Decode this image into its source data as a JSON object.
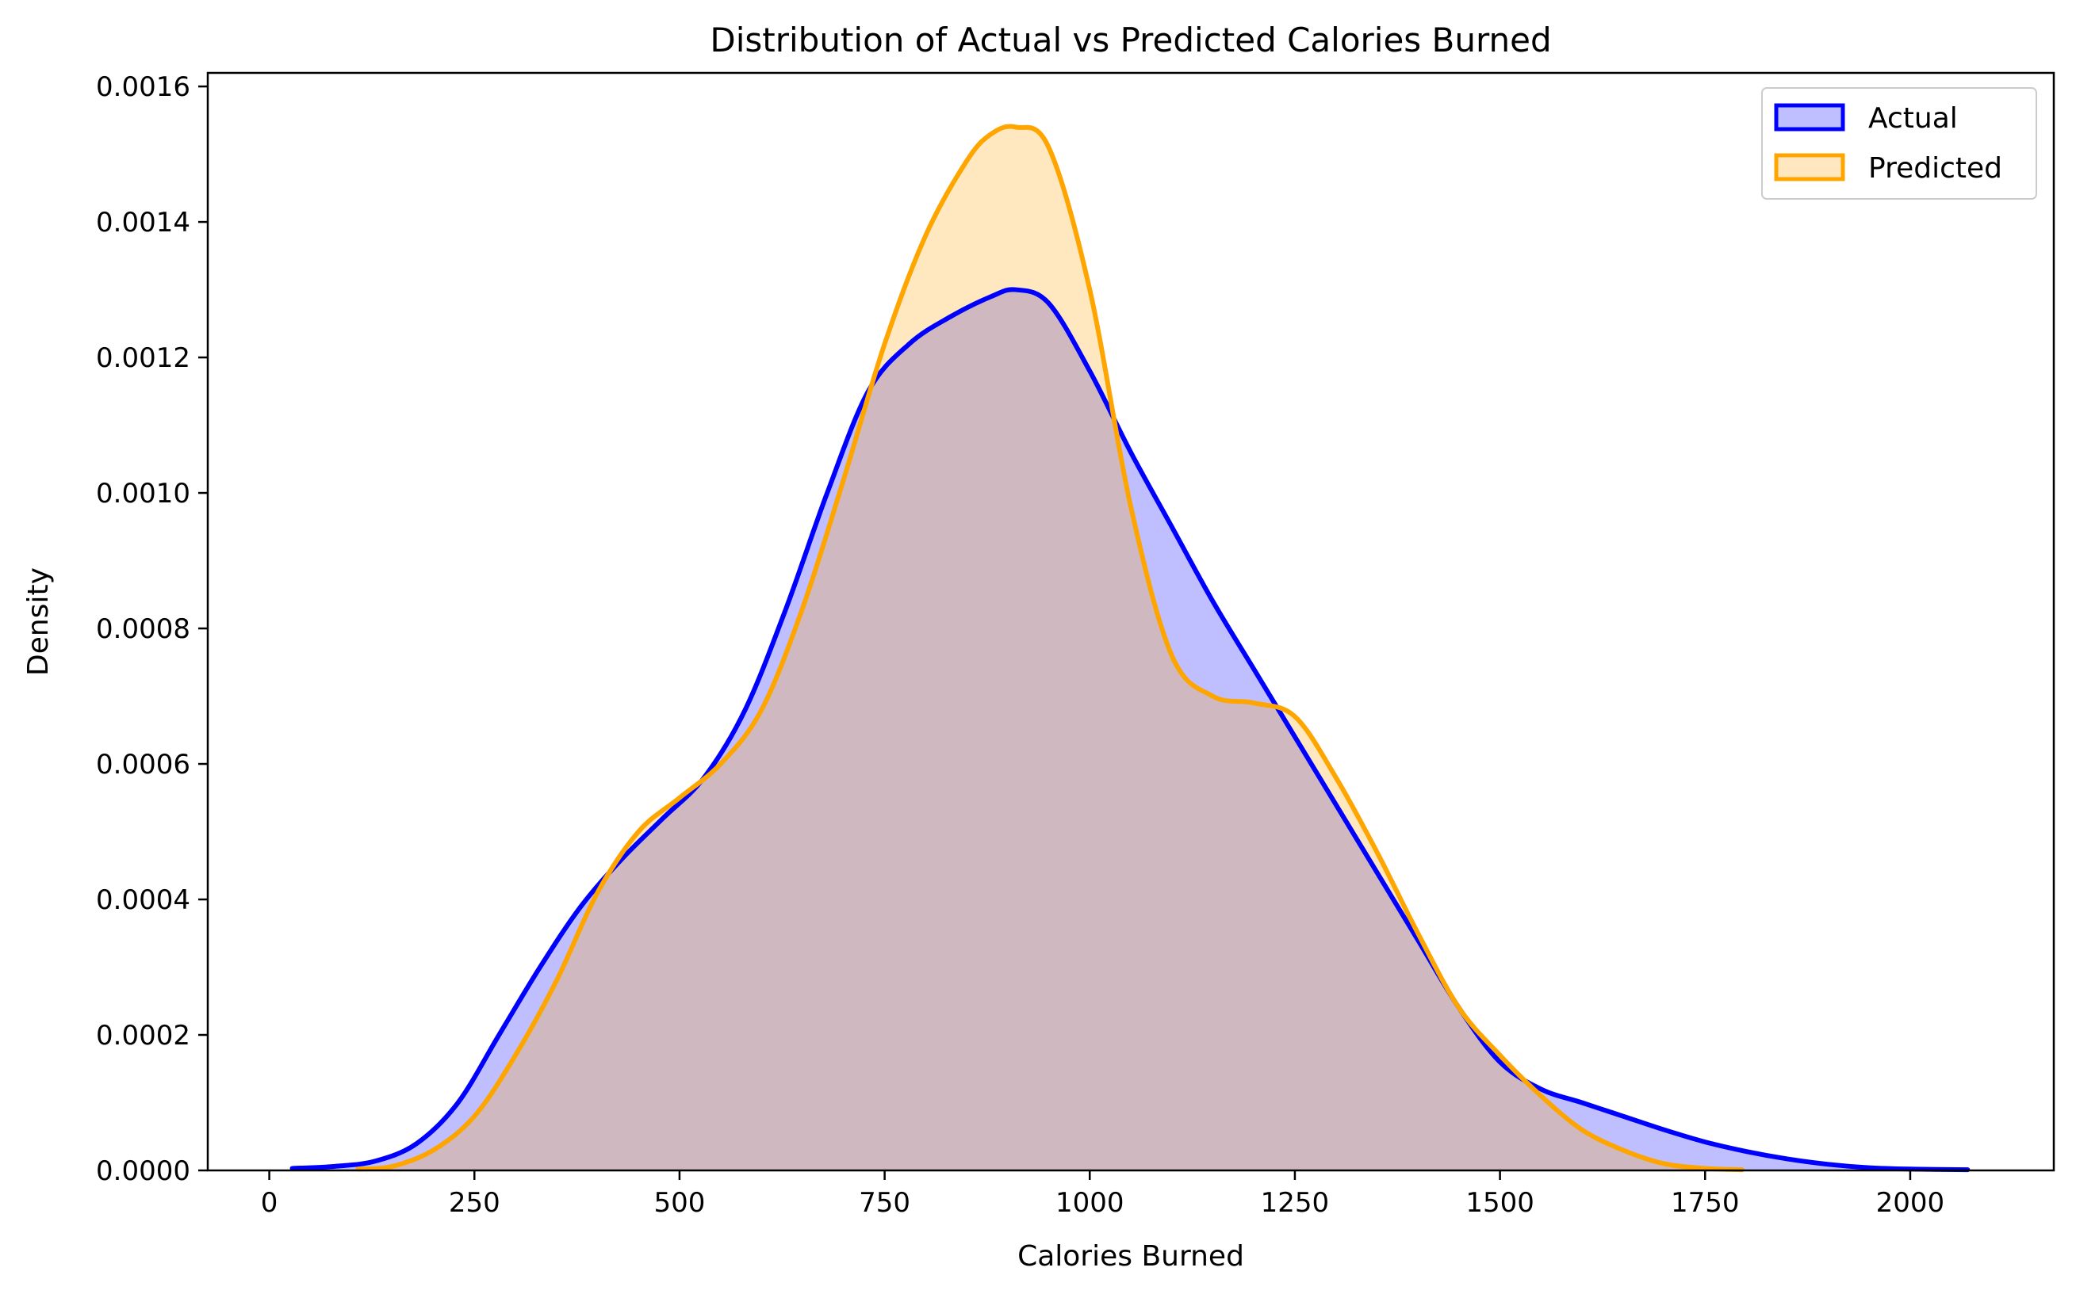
{
  "chart_data": {
    "type": "area",
    "title": "Distribution of Actual vs Predicted Calories Burned",
    "xlabel": "Calories Burned",
    "ylabel": "Density",
    "xlim": [
      -75,
      2175
    ],
    "ylim": [
      0,
      0.00162
    ],
    "x_ticks": [
      0,
      250,
      500,
      750,
      1000,
      1250,
      1500,
      1750,
      2000
    ],
    "x_tick_labels": [
      "0",
      "250",
      "500",
      "750",
      "1000",
      "1250",
      "1500",
      "1750",
      "2000"
    ],
    "y_ticks": [
      0,
      0.0002,
      0.0004,
      0.0006,
      0.0008,
      0.001,
      0.0012,
      0.0014,
      0.0016
    ],
    "y_tick_labels": [
      "0.0000",
      "0.0002",
      "0.0004",
      "0.0006",
      "0.0008",
      "0.0010",
      "0.0012",
      "0.0014",
      "0.0016"
    ],
    "grid": false,
    "legend_position": "top-right",
    "series": [
      {
        "name": "Actual",
        "color": "#0000ff",
        "fill_color": "#0000ff",
        "fill_alpha": 0.25,
        "x": [
          28,
          80,
          130,
          180,
          230,
          280,
          330,
          380,
          430,
          480,
          530,
          580,
          630,
          680,
          730,
          780,
          830,
          880,
          910,
          950,
          1000,
          1050,
          1100,
          1150,
          1200,
          1250,
          1300,
          1350,
          1400,
          1450,
          1500,
          1550,
          1600,
          1650,
          1700,
          1750,
          1800,
          1850,
          1900,
          1950,
          2000,
          2070
        ],
        "y": [
          3e-06,
          6e-06,
          1.4e-05,
          4e-05,
          0.0001,
          0.0002,
          0.0003,
          0.00039,
          0.00046,
          0.00052,
          0.00058,
          0.00068,
          0.00083,
          0.001,
          0.00115,
          0.00122,
          0.00126,
          0.00129,
          0.0013,
          0.00128,
          0.00118,
          0.00106,
          0.00095,
          0.00084,
          0.00074,
          0.00064,
          0.00054,
          0.00044,
          0.00034,
          0.00024,
          0.00016,
          0.00012,
          0.0001,
          8e-05,
          6e-05,
          4.2e-05,
          2.8e-05,
          1.7e-05,
          9e-06,
          4e-06,
          2e-06,
          1e-06
        ]
      },
      {
        "name": "Predicted",
        "color": "#ffa500",
        "fill_color": "#ffa500",
        "fill_alpha": 0.25,
        "x": [
          108,
          150,
          200,
          250,
          300,
          350,
          400,
          450,
          500,
          550,
          600,
          650,
          700,
          750,
          800,
          850,
          880,
          910,
          950,
          1000,
          1050,
          1100,
          1150,
          1200,
          1250,
          1300,
          1350,
          1400,
          1450,
          1500,
          1550,
          1600,
          1650,
          1700,
          1750,
          1795
        ],
        "y": [
          2e-06,
          6e-06,
          3e-05,
          8e-05,
          0.00017,
          0.00028,
          0.00041,
          0.0005,
          0.00055,
          0.0006,
          0.00068,
          0.00083,
          0.00102,
          0.00122,
          0.00138,
          0.00149,
          0.00153,
          0.00154,
          0.00151,
          0.0013,
          0.00098,
          0.00076,
          0.0007,
          0.00069,
          0.00067,
          0.00058,
          0.00047,
          0.00035,
          0.00024,
          0.00017,
          0.00011,
          6e-05,
          3e-05,
          1e-05,
          3e-06,
          1e-06
        ]
      }
    ]
  }
}
